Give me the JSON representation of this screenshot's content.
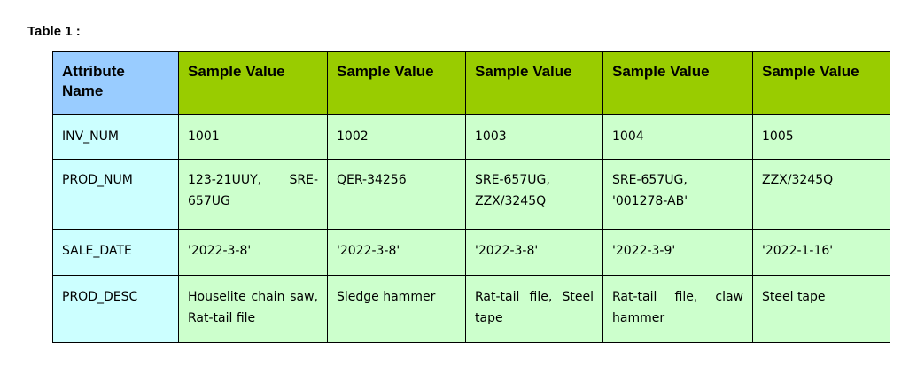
{
  "caption": "Table 1 :",
  "table": {
    "headers": [
      "Attribute Name",
      "Sample Value",
      "Sample Value",
      "Sample Value",
      "Sample Value",
      "Sample Value"
    ],
    "rows": [
      [
        "INV_NUM",
        "1001",
        "1002",
        "1003",
        "1004",
        "1005"
      ],
      [
        "PROD_NUM",
        "123-21UUY, SRE-657UG",
        "QER-34256",
        "SRE-657UG, ZZX/3245Q",
        "SRE-657UG, '001278-AB'",
        "ZZX/3245Q"
      ],
      [
        "SALE_DATE",
        "'2022-3-8'",
        "'2022-3-8'",
        "'2022-3-8'",
        "'2022-3-9'",
        "'2022-1-16'"
      ],
      [
        "PROD_DESC",
        "Houselite chain saw, Rat-tail file",
        "Sledge hammer",
        "Rat-tail file, Steel tape",
        "Rat-tail file, claw hammer",
        "Steel tape"
      ]
    ],
    "colors": {
      "attr_header": "#99ccff",
      "value_header": "#99cc00",
      "attr_cell": "#ccffff",
      "value_cell": "#ccffcc"
    }
  }
}
